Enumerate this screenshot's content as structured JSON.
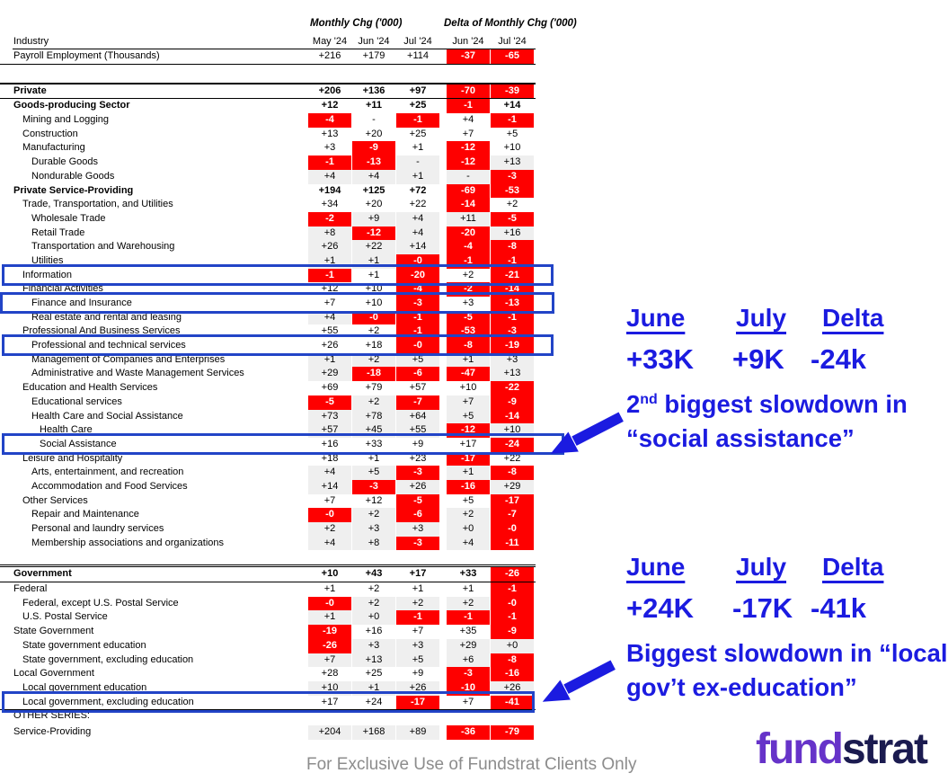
{
  "colors": {
    "red": "#fe0000",
    "shade_gray": "#efefef",
    "highlight_blue": "#2244c7",
    "annotation_blue": "#1b1be0",
    "footer_gray": "#8c8c8c",
    "logo_purple": "#6633c9",
    "logo_navy": "#1b1b50"
  },
  "header": {
    "group1": "Monthly Chg ('000)",
    "group2": "Delta of Monthly Chg ('000)",
    "industry_label": "Industry",
    "columns": [
      "May '24",
      "Jun '24",
      "Jul '24",
      "Jun '24",
      "Jul '24"
    ]
  },
  "table": {
    "rows": [
      {
        "label": "Payroll Employment (Thousands)",
        "indent": 0,
        "cls": "payroll",
        "values": [
          "+216",
          "+179",
          "+114",
          "-37",
          "-65"
        ]
      },
      {
        "label": "Private",
        "indent": 0,
        "bold": true,
        "cls": "private",
        "values": [
          "+206",
          "+136",
          "+97",
          "-70",
          "-39"
        ]
      },
      {
        "label": "Goods-producing Sector",
        "indent": 0,
        "bold": true,
        "values": [
          "+12",
          "+11",
          "+25",
          "-1",
          "+14"
        ]
      },
      {
        "label": "Mining and Logging",
        "indent": 1,
        "values": [
          "-4",
          "-",
          "-1",
          "+4",
          "-1"
        ]
      },
      {
        "label": "Construction",
        "indent": 1,
        "values": [
          "+13",
          "+20",
          "+25",
          "+7",
          "+5"
        ]
      },
      {
        "label": "Manufacturing",
        "indent": 1,
        "values": [
          "+3",
          "-9",
          "+1",
          "-12",
          "+10"
        ]
      },
      {
        "label": "Durable Goods",
        "indent": 2,
        "shade": true,
        "values": [
          "-1",
          "-13",
          "-",
          "-12",
          "+13"
        ]
      },
      {
        "label": "Nondurable Goods",
        "indent": 2,
        "shade": true,
        "values": [
          "+4",
          "+4",
          "+1",
          "-",
          "-3"
        ]
      },
      {
        "label": "Private Service-Providing",
        "indent": 0,
        "bold": true,
        "values": [
          "+194",
          "+125",
          "+72",
          "-69",
          "-53"
        ]
      },
      {
        "label": "Trade, Transportation, and Utilities",
        "indent": 1,
        "values": [
          "+34",
          "+20",
          "+22",
          "-14",
          "+2"
        ]
      },
      {
        "label": "Wholesale Trade",
        "indent": 2,
        "shade": true,
        "values": [
          "-2",
          "+9",
          "+4",
          "+11",
          "-5"
        ]
      },
      {
        "label": "Retail Trade",
        "indent": 2,
        "shade": true,
        "values": [
          "+8",
          "-12",
          "+4",
          "-20",
          "+16"
        ]
      },
      {
        "label": "Transportation and Warehousing",
        "indent": 2,
        "shade": true,
        "values": [
          "+26",
          "+22",
          "+14",
          "-4",
          "-8"
        ]
      },
      {
        "label": "Utilities",
        "indent": 2,
        "shade": true,
        "values": [
          "+1",
          "+1",
          "-0",
          "-1",
          "-1"
        ]
      },
      {
        "label": "Information",
        "indent": 1,
        "boxed": true,
        "values": [
          "-1",
          "+1",
          "-20",
          "+2",
          "-21"
        ]
      },
      {
        "label": "Financial Activities",
        "indent": 1,
        "values": [
          "+12",
          "+10",
          "-4",
          "-2",
          "-14"
        ]
      },
      {
        "label": "Finance and Insurance",
        "indent": 2,
        "boxed": true,
        "values": [
          "+7",
          "+10",
          "-3",
          "+3",
          "-13"
        ]
      },
      {
        "label": "Real estate and rental and leasing",
        "indent": 2,
        "shade": true,
        "values": [
          "+4",
          "-0",
          "-1",
          "-5",
          "-1"
        ]
      },
      {
        "label": "Professional And Business Services",
        "indent": 1,
        "values": [
          "+55",
          "+2",
          "-1",
          "-53",
          "-3"
        ]
      },
      {
        "label": "Professional and technical services",
        "indent": 2,
        "boxed": true,
        "values": [
          "+26",
          "+18",
          "-0",
          "-8",
          "-19"
        ]
      },
      {
        "label": "Management of Companies and Enterprises",
        "indent": 2,
        "shade": true,
        "values": [
          "+1",
          "+2",
          "+5",
          "+1",
          "+3"
        ]
      },
      {
        "label": "Administrative and Waste Management Services",
        "indent": 2,
        "shade": true,
        "values": [
          "+29",
          "-18",
          "-6",
          "-47",
          "+13"
        ]
      },
      {
        "label": "Education and Health Services",
        "indent": 1,
        "values": [
          "+69",
          "+79",
          "+57",
          "+10",
          "-22"
        ]
      },
      {
        "label": "Educational services",
        "indent": 2,
        "shade": true,
        "values": [
          "-5",
          "+2",
          "-7",
          "+7",
          "-9"
        ]
      },
      {
        "label": "Health Care and Social Assistance",
        "indent": 2,
        "shade": true,
        "values": [
          "+73",
          "+78",
          "+64",
          "+5",
          "-14"
        ]
      },
      {
        "label": "Health Care",
        "indent": 3,
        "shade": true,
        "values": [
          "+57",
          "+45",
          "+55",
          "-12",
          "+10"
        ]
      },
      {
        "label": "Social Assistance",
        "indent": 3,
        "boxed": true,
        "values": [
          "+16",
          "+33",
          "+9",
          "+17",
          "-24"
        ]
      },
      {
        "label": "Leisure and Hospitality",
        "indent": 1,
        "values": [
          "+18",
          "+1",
          "+23",
          "-17",
          "+22"
        ]
      },
      {
        "label": "Arts, entertainment, and recreation",
        "indent": 2,
        "shade": true,
        "values": [
          "+4",
          "+5",
          "-3",
          "+1",
          "-8"
        ]
      },
      {
        "label": "Accommodation and Food Services",
        "indent": 2,
        "shade": true,
        "values": [
          "+14",
          "-3",
          "+26",
          "-16",
          "+29"
        ]
      },
      {
        "label": "Other Services",
        "indent": 1,
        "values": [
          "+7",
          "+12",
          "-5",
          "+5",
          "-17"
        ]
      },
      {
        "label": "Repair and Maintenance",
        "indent": 2,
        "shade": true,
        "values": [
          "-0",
          "+2",
          "-6",
          "+2",
          "-7"
        ]
      },
      {
        "label": "Personal and laundry services",
        "indent": 2,
        "shade": true,
        "values": [
          "+2",
          "+3",
          "+3",
          "+0",
          "-0"
        ]
      },
      {
        "label": "Membership associations and organizations",
        "indent": 2,
        "shade": true,
        "values": [
          "+4",
          "+8",
          "-3",
          "+4",
          "-11"
        ]
      },
      {
        "label": "Government",
        "indent": 0,
        "bold": true,
        "cls": "government",
        "values": [
          "+10",
          "+43",
          "+17",
          "+33",
          "-26"
        ]
      },
      {
        "label": "Federal",
        "indent": 0,
        "values": [
          "+1",
          "+2",
          "+1",
          "+1",
          "-1"
        ]
      },
      {
        "label": "Federal, except U.S. Postal Service",
        "indent": 1,
        "shade": true,
        "values": [
          "-0",
          "+2",
          "+2",
          "+2",
          "-0"
        ]
      },
      {
        "label": "U.S. Postal Service",
        "indent": 1,
        "shade": true,
        "values": [
          "+1",
          "+0",
          "-1",
          "-1",
          "-1"
        ]
      },
      {
        "label": "State Government",
        "indent": 0,
        "values": [
          "-19",
          "+16",
          "+7",
          "+35",
          "-9"
        ]
      },
      {
        "label": "State government education",
        "indent": 1,
        "shade": true,
        "values": [
          "-26",
          "+3",
          "+3",
          "+29",
          "+0"
        ]
      },
      {
        "label": "State government, excluding education",
        "indent": 1,
        "shade": true,
        "values": [
          "+7",
          "+13",
          "+5",
          "+6",
          "-8"
        ]
      },
      {
        "label": "Local Government",
        "indent": 0,
        "values": [
          "+28",
          "+25",
          "+9",
          "-3",
          "-16"
        ]
      },
      {
        "label": "Local government education",
        "indent": 1,
        "shade": true,
        "values": [
          "+10",
          "+1",
          "+26",
          "-10",
          "+26"
        ]
      },
      {
        "label": "Local government, excluding education",
        "indent": 1,
        "boxed": true,
        "cls": "localex",
        "values": [
          "+17",
          "+24",
          "-17",
          "+7",
          "-41"
        ]
      },
      {
        "label": "OTHER SERIES:",
        "indent": 0,
        "cls": "otherseries",
        "values": []
      },
      {
        "label": "Service-Providing",
        "indent": 0,
        "cls": "service",
        "shade": true,
        "values": [
          "+204",
          "+168",
          "+89",
          "-36",
          "-79"
        ]
      }
    ],
    "highlighted_rows": [
      "Information",
      "Finance and Insurance",
      "Professional and technical services",
      "Social Assistance",
      "Local government, excluding education"
    ]
  },
  "annotations": [
    {
      "columns": [
        "June",
        "July",
        "Delta"
      ],
      "values": [
        "+33K",
        "+9K",
        "-24k"
      ],
      "desc1_pre": "2",
      "desc1_sup": "nd",
      "desc1_post": " biggest slowdown in",
      "desc2": "“social assistance”"
    },
    {
      "columns": [
        "June",
        "July",
        "Delta"
      ],
      "values": [
        "+24K",
        "-17K",
        "-41k"
      ],
      "desc1_pre": "Biggest slowdown in “local",
      "desc1_sup": "",
      "desc1_post": "",
      "desc2": "gov’t ex-education”"
    }
  ],
  "footer": {
    "disclaimer": "For Exclusive Use of Fundstrat Clients Only",
    "logo_fund": "fund",
    "logo_strat": "strat"
  }
}
